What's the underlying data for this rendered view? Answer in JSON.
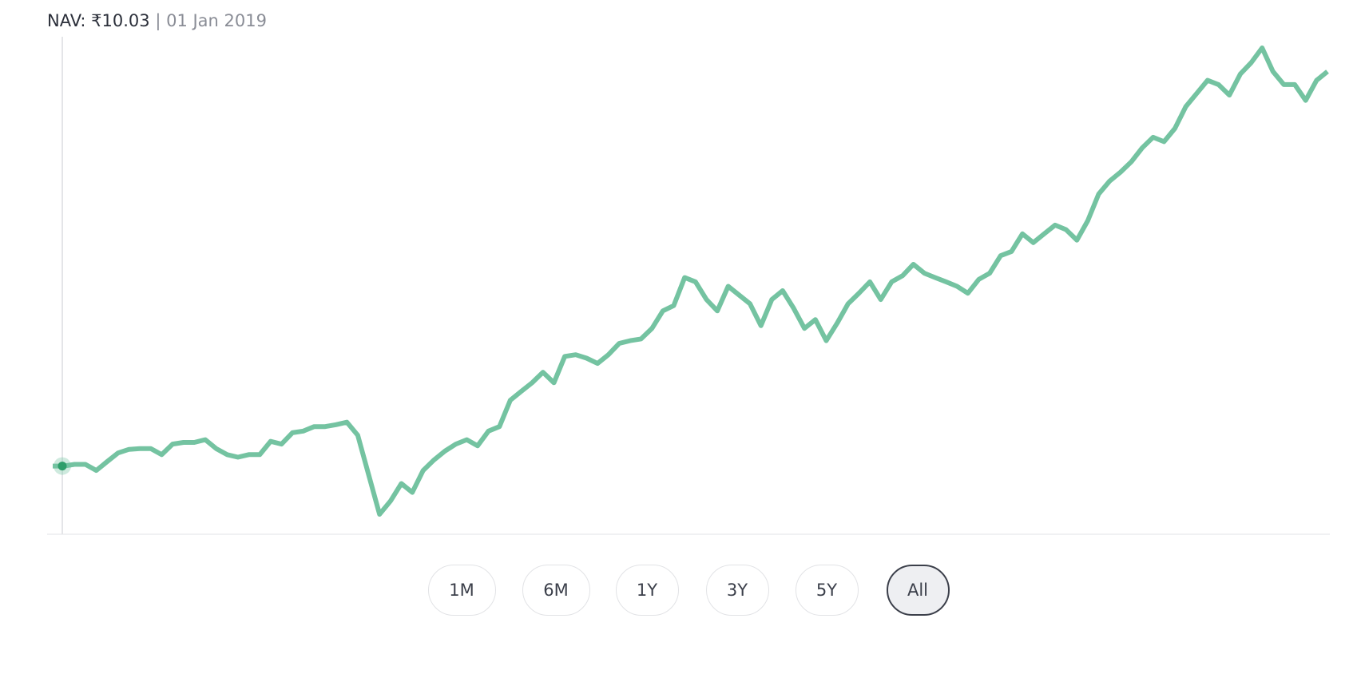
{
  "chart_data": {
    "type": "line",
    "nav_label": "NAV: ₹10.03",
    "separator": "|",
    "date_label": "01 Jan 2019",
    "color": "#74c3a1",
    "values": [
      10.03,
      10.03,
      10.11,
      10.11,
      9.82,
      10.24,
      10.65,
      10.82,
      10.86,
      10.86,
      10.57,
      11.07,
      11.15,
      11.15,
      11.28,
      10.86,
      10.57,
      10.45,
      10.57,
      10.57,
      11.2,
      11.07,
      11.61,
      11.69,
      11.9,
      11.9,
      11.99,
      12.11,
      11.49,
      9.61,
      7.74,
      8.37,
      9.2,
      8.78,
      9.82,
      10.32,
      10.74,
      11.07,
      11.28,
      10.99,
      11.69,
      11.9,
      13.15,
      13.57,
      13.98,
      14.48,
      13.98,
      15.23,
      15.31,
      15.15,
      14.9,
      15.31,
      15.85,
      15.98,
      16.06,
      16.56,
      17.39,
      17.64,
      18.97,
      18.77,
      17.93,
      17.39,
      18.56,
      18.14,
      17.73,
      16.69,
      17.93,
      18.35,
      17.52,
      16.56,
      16.98,
      15.98,
      16.81,
      17.73,
      18.23,
      18.77,
      17.93,
      18.77,
      19.06,
      19.6,
      19.18,
      18.97,
      18.77,
      18.56,
      18.23,
      18.89,
      19.18,
      20.01,
      20.21,
      21.05,
      20.63,
      21.05,
      21.46,
      21.25,
      20.75,
      21.67,
      22.93,
      23.55,
      23.97,
      24.47,
      25.13,
      25.63,
      25.42,
      26.05,
      27.09,
      27.71,
      28.33,
      28.13,
      27.63,
      28.63,
      29.17,
      29.87,
      28.75,
      28.13,
      28.13,
      27.38,
      28.33,
      28.75
    ],
    "range_buttons": [
      "1M",
      "6M",
      "1Y",
      "3Y",
      "5Y",
      "All"
    ],
    "selected_index": 5
  }
}
